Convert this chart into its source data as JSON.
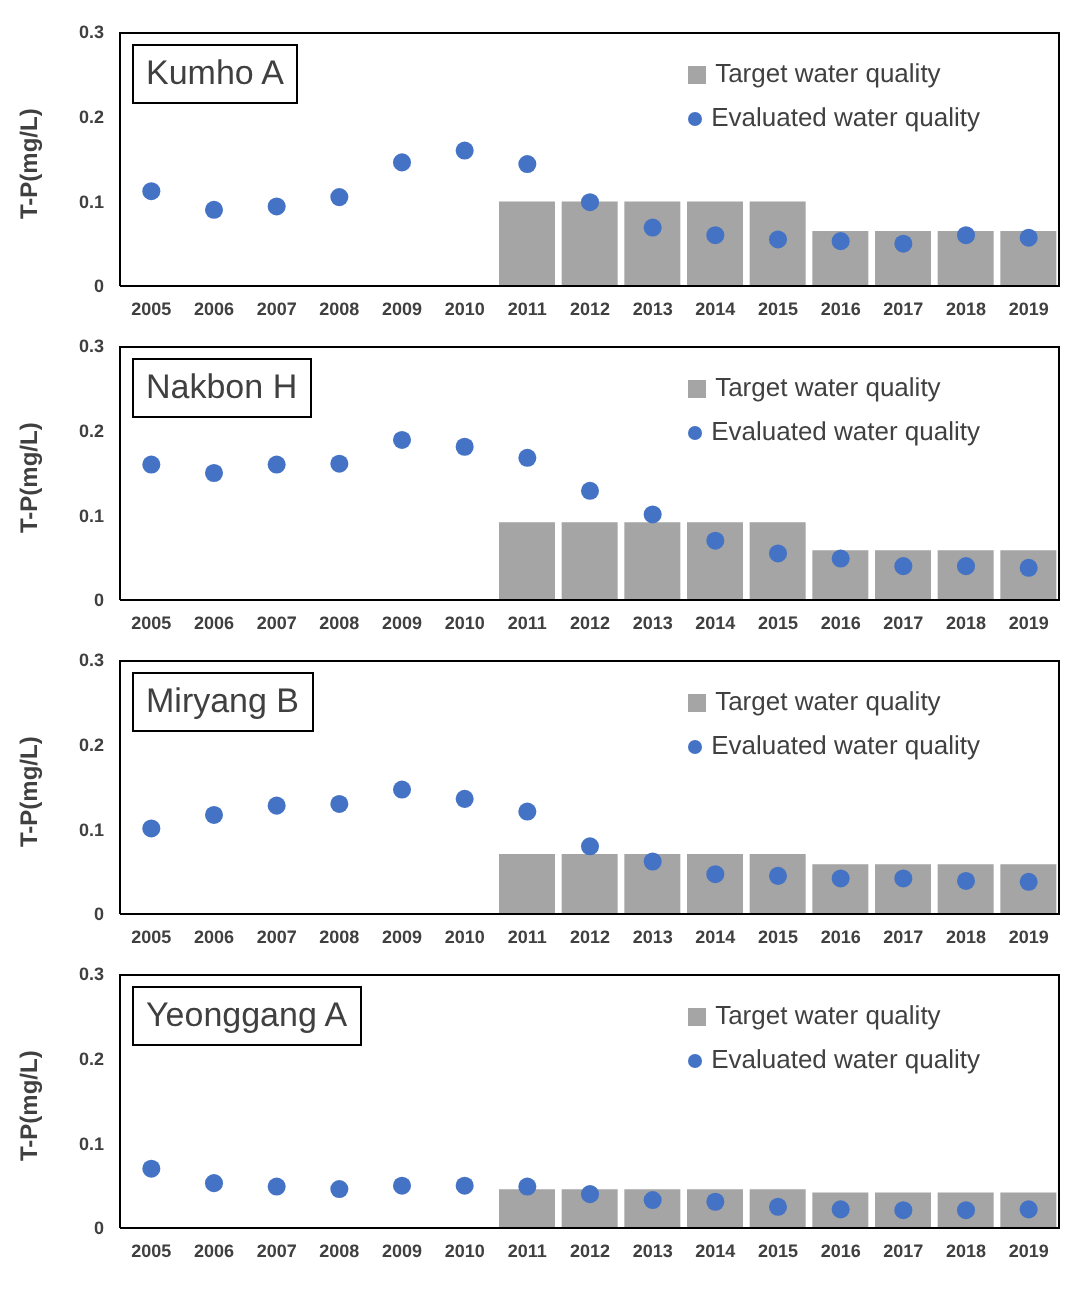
{
  "chart_data": [
    {
      "type": "bar",
      "title": "Kumho A",
      "ylabel": "T-P(mg/L)",
      "categories": [
        "2005",
        "2006",
        "2007",
        "2008",
        "2009",
        "2010",
        "2011",
        "2012",
        "2013",
        "2014",
        "2015",
        "2016",
        "2017",
        "2018",
        "2019"
      ],
      "ylim": [
        0,
        0.3
      ],
      "yticks": [
        0,
        0.1,
        0.2,
        0.3
      ],
      "legend": "top right",
      "marker": "circle",
      "series": [
        {
          "name": "Target water quality",
          "color": "#a5a5a5",
          "values": [
            null,
            null,
            null,
            null,
            null,
            null,
            0.101,
            0.101,
            0.101,
            0.101,
            0.101,
            0.066,
            0.066,
            0.066,
            0.066
          ]
        },
        {
          "name": "Evaluated water quality",
          "type": "scatter",
          "color": "#4472c4",
          "values": [
            0.112,
            0.09,
            0.094,
            0.105,
            0.146,
            0.16,
            0.144,
            0.099,
            0.069,
            0.06,
            0.055,
            0.053,
            0.05,
            0.06,
            0.057
          ]
        }
      ]
    },
    {
      "type": "bar",
      "title": "Nakbon H",
      "ylabel": "T-P(mg/L)",
      "categories": [
        "2005",
        "2006",
        "2007",
        "2008",
        "2009",
        "2010",
        "2011",
        "2012",
        "2013",
        "2014",
        "2015",
        "2016",
        "2017",
        "2018",
        "2019"
      ],
      "ylim": [
        0,
        0.3
      ],
      "yticks": [
        0,
        0.1,
        0.2,
        0.3
      ],
      "legend": "top right",
      "marker": "circle",
      "series": [
        {
          "name": "Target water quality",
          "color": "#a5a5a5",
          "values": [
            null,
            null,
            null,
            null,
            null,
            null,
            0.093,
            0.093,
            0.093,
            0.093,
            0.093,
            0.06,
            0.06,
            0.06,
            0.06
          ]
        },
        {
          "name": "Evaluated water quality",
          "type": "scatter",
          "color": "#4472c4",
          "values": [
            0.16,
            0.15,
            0.16,
            0.161,
            0.189,
            0.181,
            0.168,
            0.129,
            0.101,
            0.07,
            0.055,
            0.049,
            0.04,
            0.04,
            0.038
          ]
        }
      ]
    },
    {
      "type": "bar",
      "title": "Miryang B",
      "ylabel": "T-P(mg/L)",
      "categories": [
        "2005",
        "2006",
        "2007",
        "2008",
        "2009",
        "2010",
        "2011",
        "2012",
        "2013",
        "2014",
        "2015",
        "2016",
        "2017",
        "2018",
        "2019"
      ],
      "ylim": [
        0,
        0.3
      ],
      "yticks": [
        0,
        0.1,
        0.2,
        0.3
      ],
      "legend": "top right",
      "marker": "circle",
      "series": [
        {
          "name": "Target water quality",
          "color": "#a5a5a5",
          "values": [
            null,
            null,
            null,
            null,
            null,
            null,
            0.072,
            0.072,
            0.072,
            0.072,
            0.072,
            0.06,
            0.06,
            0.06,
            0.06
          ]
        },
        {
          "name": "Evaluated water quality",
          "type": "scatter",
          "color": "#4472c4",
          "values": [
            0.101,
            0.117,
            0.128,
            0.13,
            0.147,
            0.136,
            0.121,
            0.08,
            0.062,
            0.047,
            0.045,
            0.042,
            0.042,
            0.039,
            0.038
          ]
        }
      ]
    },
    {
      "type": "bar",
      "title": "Yeonggang A",
      "ylabel": "T-P(mg/L)",
      "categories": [
        "2005",
        "2006",
        "2007",
        "2008",
        "2009",
        "2010",
        "2011",
        "2012",
        "2013",
        "2014",
        "2015",
        "2016",
        "2017",
        "2018",
        "2019"
      ],
      "ylim": [
        0,
        0.3
      ],
      "yticks": [
        0,
        0.1,
        0.2,
        0.3
      ],
      "legend": "top right",
      "marker": "circle",
      "series": [
        {
          "name": "Target water quality",
          "color": "#a5a5a5",
          "values": [
            null,
            null,
            null,
            null,
            null,
            null,
            0.047,
            0.047,
            0.047,
            0.047,
            0.047,
            0.043,
            0.043,
            0.043,
            0.043
          ]
        },
        {
          "name": "Evaluated water quality",
          "type": "scatter",
          "color": "#4472c4",
          "values": [
            0.07,
            0.053,
            0.049,
            0.046,
            0.05,
            0.05,
            0.049,
            0.04,
            0.033,
            0.031,
            0.025,
            0.022,
            0.021,
            0.021,
            0.022
          ]
        }
      ]
    }
  ]
}
